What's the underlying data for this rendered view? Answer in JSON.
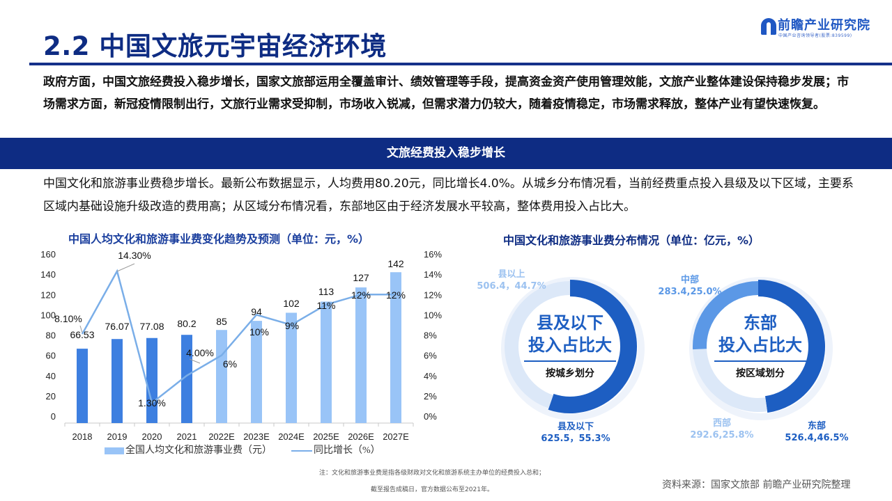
{
  "header": {
    "title": "2.2 中国文旅元宇宙经济环境",
    "logo_name": "前瞻产业研究院",
    "logo_sub": "中国产业咨询领导者(股票:839599)"
  },
  "intro": {
    "text": "政府方面，中国文旅经费投入稳步增长，国家文旅部运用全覆盖审计、绩效管理等手段，提高资金资产使用管理效能，文旅产业整体建设保持稳步发展；市场需求方面，新冠疫情限制出行，文旅行业需求受抑制，市场收入锐减，但需求潜力仍较大，随着疫情稳定，市场需求释放，整体产业有望快速恢复。"
  },
  "banner": {
    "text": "文旅经费投入稳步增长"
  },
  "description": {
    "text": "中国文化和旅游事业费稳步增长。最新公布数据显示，人均费用80.20元，同比增长4.0%。从城乡分布情况看，当前经费重点投入县级及以下区域，主要系区域内基础设施升级改造的费用高；从区域分布情况看，东部地区由于经济发展水平较高，整体费用投入占比大。"
  },
  "legend": {
    "bar_label": "全国人均文化和旅游事业费（元）",
    "line_label": "同比增长（%）"
  },
  "colors": {
    "title_navy": "#0e2c83",
    "bar_actual": "#3d7fe0",
    "bar_forecast": "#99c4f7",
    "line": "#7aaee8",
    "donut_dark": "#1d5ec2",
    "donut_mid": "#5b98e6",
    "donut_light": "#dce8f8"
  },
  "chart_data": [
    {
      "type": "bar",
      "title": "中国人均文化和旅游事业费变化趋势及预测（单位：元，%）",
      "categories": [
        "2018",
        "2019",
        "2020",
        "2021",
        "2022E",
        "2023E",
        "2024E",
        "2025E",
        "2026E",
        "2027E"
      ],
      "series": [
        {
          "name": "全国人均文化和旅游事业费（元）",
          "type": "bar",
          "axis": "left",
          "values": [
            66.53,
            76.07,
            77.08,
            80.2,
            85,
            94,
            102,
            113,
            127,
            142
          ],
          "labels": [
            "66.53",
            "76.07",
            "77.08",
            "80.2",
            "85",
            "94",
            "102",
            "113",
            "127",
            "142"
          ]
        },
        {
          "name": "同比增长（%）",
          "type": "line",
          "axis": "right",
          "values": [
            8.1,
            14.3,
            1.3,
            4.0,
            6,
            10,
            9,
            11,
            12,
            12
          ],
          "labels": [
            "8.10%",
            "14.30%",
            "1.30%",
            "4.00%",
            "6%",
            "10%",
            "9%",
            "11%",
            "12%",
            "12%"
          ]
        }
      ],
      "ylim_left": [
        0,
        160
      ],
      "yticks_left": [
        "0",
        "20",
        "40",
        "60",
        "80",
        "100",
        "120",
        "140",
        "160"
      ],
      "ylim_right": [
        0,
        16
      ],
      "yticks_right": [
        "0%",
        "2%",
        "4%",
        "6%",
        "8%",
        "10%",
        "12%",
        "14%",
        "16%"
      ],
      "forecast_start_index": 4,
      "grid": false,
      "legend_position": "bottom"
    },
    {
      "type": "pie",
      "title": "中国文化和旅游事业费分布情况（单位：亿元，%）",
      "subtitle": "按城乡划分",
      "center_text": [
        "县及以下",
        "投入占比大"
      ],
      "slices": [
        {
          "label": "县及以下",
          "value": 625.5,
          "percent": 55.3,
          "display": "625.5，55.3%"
        },
        {
          "label": "县以上",
          "value": 506.4,
          "percent": 44.7,
          "display": "506.4，44.7%"
        }
      ]
    },
    {
      "type": "pie",
      "title": "中国文化和旅游事业费分布情况（单位：亿元，%）",
      "subtitle": "按区域划分",
      "center_text": [
        "东部",
        "投入占比大"
      ],
      "slices": [
        {
          "label": "东部",
          "value": 526.4,
          "percent": 46.5,
          "display": "526.4,46.5%"
        },
        {
          "label": "西部",
          "value": 292.6,
          "percent": 25.8,
          "display": "292.6,25.8%"
        },
        {
          "label": "中部",
          "value": 283.4,
          "percent": 25.0,
          "display": "283.4,25.0%"
        }
      ]
    }
  ],
  "donuts": {
    "urban_rural": {
      "center_line1": "县及以下",
      "center_line2": "投入占比大",
      "caption": "按城乡划分",
      "label_a_name": "县以上",
      "label_a_value": "506.4，44.7%",
      "label_b_name": "县及以下",
      "label_b_value": "625.5，55.3%"
    },
    "region": {
      "center_line1": "东部",
      "center_line2": "投入占比大",
      "caption": "按区域划分",
      "label_mid_name": "中部",
      "label_mid_value": "283.4,25.0%",
      "label_west_name": "西部",
      "label_west_value": "292.6,25.8%",
      "label_east_name": "东部",
      "label_east_value": "526.4,46.5%"
    }
  },
  "footer": {
    "note_line1": "注：文化和旅游事业费是指各级财政对文化和旅游系统主办单位的经费投入总和；",
    "note_line2": "截至报告成稿日，官方数据公布至2021年。",
    "source": "资料来源：国家文旅部 前瞻产业研究院整理"
  }
}
